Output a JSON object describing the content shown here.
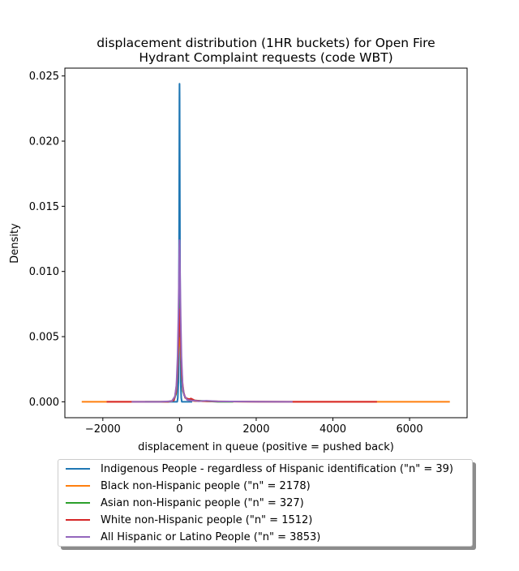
{
  "chart_data": {
    "type": "line",
    "title": "displacement distribution (1HR buckets) for Open Fire\nHydrant Complaint requests (code WBT)",
    "title_lines": [
      "displacement distribution (1HR buckets) for Open Fire",
      "Hydrant Complaint requests (code WBT)"
    ],
    "xlabel": "displacement in queue (positive = pushed back)",
    "ylabel": "Density",
    "xlim": [
      -2990,
      7500
    ],
    "ylim": [
      -0.00122,
      0.0256
    ],
    "x_ticks": [
      -2000,
      0,
      2000,
      4000,
      6000
    ],
    "x_tick_labels": [
      "−2000",
      "0",
      "2000",
      "4000",
      "6000"
    ],
    "y_ticks": [
      0.0,
      0.005,
      0.01,
      0.015,
      0.02,
      0.025
    ],
    "y_tick_labels": [
      "0.000",
      "0.005",
      "0.010",
      "0.015",
      "0.020",
      "0.025"
    ],
    "grid": false,
    "legend_placement": "below plot",
    "series": [
      {
        "name": "Indigenous People - regardless of Hispanic identification (\"n\" = 39)",
        "color": "#1f77b4",
        "x": [
          -330,
          -60,
          -45,
          -30,
          -20,
          -12,
          -6,
          -3,
          -1,
          0,
          1,
          3,
          6,
          12,
          20,
          30,
          45,
          60,
          330
        ],
        "y": [
          0,
          0,
          0.0003,
          0.0015,
          0.005,
          0.012,
          0.019,
          0.0232,
          0.0243,
          0.0244,
          0.0243,
          0.0232,
          0.019,
          0.012,
          0.005,
          0.0015,
          0.0003,
          0,
          0
        ]
      },
      {
        "name": "Black non-Hispanic people (\"n\" = 2178)",
        "color": "#ff7f0e",
        "x": [
          -2550,
          -1500,
          -400,
          -200,
          -120,
          -80,
          -50,
          -25,
          0,
          25,
          50,
          80,
          120,
          200,
          300,
          400,
          600,
          800,
          1300,
          2000,
          3000,
          5000,
          7050
        ],
        "y": [
          0,
          0,
          0,
          5e-05,
          0.0004,
          0.0012,
          0.0026,
          0.0042,
          0.0049,
          0.0042,
          0.0028,
          0.0014,
          0.0005,
          0.00015,
          0.0001,
          5e-05,
          5e-05,
          3e-05,
          2e-05,
          1e-05,
          0,
          0,
          0
        ]
      },
      {
        "name": "Asian non-Hispanic people (\"n\" = 327)",
        "color": "#2ca02c",
        "x": [
          -900,
          -300,
          -150,
          -90,
          -60,
          -30,
          -10,
          0,
          10,
          30,
          60,
          90,
          150,
          250,
          400,
          700,
          1000,
          1400
        ],
        "y": [
          0,
          0,
          0.0001,
          0.0006,
          0.0018,
          0.0045,
          0.0072,
          0.0078,
          0.0072,
          0.0045,
          0.0018,
          0.0008,
          0.0003,
          0.0002,
          0.0001,
          5e-05,
          0,
          0
        ]
      },
      {
        "name": "White non-Hispanic people (\"n\" = 1512)",
        "color": "#d62728",
        "x": [
          -1900,
          -1000,
          -300,
          -150,
          -90,
          -60,
          -30,
          -10,
          0,
          10,
          30,
          60,
          90,
          150,
          250,
          300,
          400,
          600,
          1000,
          2000,
          3000,
          5150
        ],
        "y": [
          0,
          0,
          0,
          0.0001,
          0.0007,
          0.0019,
          0.0045,
          0.0066,
          0.0071,
          0.0066,
          0.0045,
          0.002,
          0.0009,
          0.0003,
          0.0002,
          0.00025,
          0.0001,
          5e-05,
          3e-05,
          1e-05,
          0,
          0
        ]
      },
      {
        "name": "All Hispanic or Latino People (\"n\" = 3853)",
        "color": "#9467bd",
        "x": [
          -1250,
          -500,
          -200,
          -120,
          -80,
          -50,
          -30,
          -15,
          -5,
          0,
          5,
          15,
          30,
          50,
          80,
          120,
          200,
          300,
          500,
          700,
          1000,
          2000,
          2950
        ],
        "y": [
          0,
          0,
          5e-05,
          0.0004,
          0.0013,
          0.0035,
          0.0065,
          0.0095,
          0.0118,
          0.0124,
          0.0118,
          0.0095,
          0.0065,
          0.0035,
          0.0013,
          0.0005,
          0.00015,
          0.0001,
          5e-05,
          8e-05,
          3e-05,
          1e-05,
          0
        ]
      }
    ]
  }
}
